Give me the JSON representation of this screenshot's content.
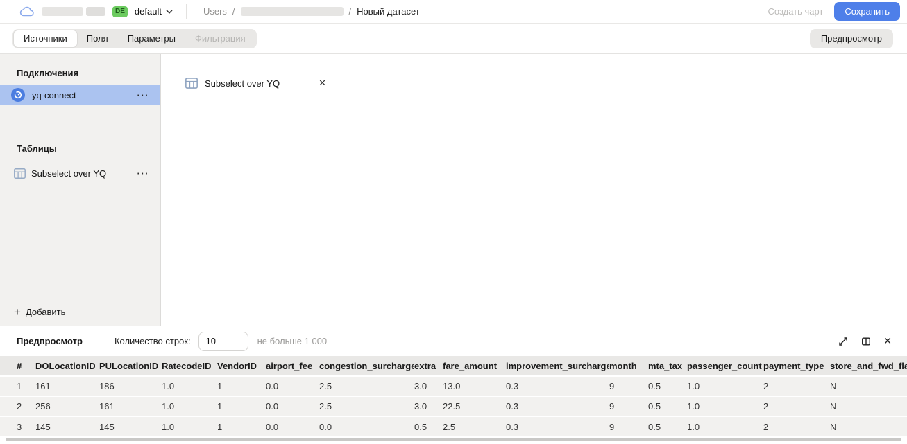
{
  "colors": {
    "accent_blue": "#4e7fe9",
    "selected_item_blue": "#abc3f0",
    "badge_green": "#6ccb5f",
    "connection_icon_blue": "#4b7de0"
  },
  "topbar": {
    "badge": "DE",
    "folder_name": "default",
    "breadcrumb": {
      "root": "Users",
      "separator": "/",
      "current": "Новый датасет"
    },
    "create_chart_label": "Создать чарт",
    "save_label": "Сохранить"
  },
  "tabs": {
    "items": [
      {
        "label": "Источники",
        "state": "active"
      },
      {
        "label": "Поля",
        "state": "default"
      },
      {
        "label": "Параметры",
        "state": "default"
      },
      {
        "label": "Фильтрация",
        "state": "disabled"
      }
    ],
    "preview_button_label": "Предпросмотр"
  },
  "sidebar": {
    "connections_title": "Подключения",
    "connections": [
      {
        "name": "yq-connect"
      }
    ],
    "tables_title": "Таблицы",
    "tables": [
      {
        "name": "Subselect over YQ"
      }
    ],
    "add_label": "Добавить"
  },
  "workspace": {
    "source_chip_label": "Subselect over YQ"
  },
  "preview": {
    "title": "Предпросмотр",
    "row_count_label": "Количество строк:",
    "row_count_value": "10",
    "row_count_hint": "не больше 1 000",
    "table": {
      "columns": [
        "#",
        "DOLocationID",
        "PULocationID",
        "RatecodeID",
        "VendorID",
        "airport_fee",
        "congestion_surcharge",
        "extra",
        "fare_amount",
        "improvement_surcharge",
        "month",
        "mta_tax",
        "passenger_count",
        "payment_type",
        "store_and_fwd_flag"
      ],
      "rows": [
        [
          "1",
          "161",
          "186",
          "1.0",
          "1",
          "0.0",
          "2.5",
          "3.0",
          "13.0",
          "0.3",
          "9",
          "0.5",
          "1.0",
          "2",
          "N"
        ],
        [
          "2",
          "256",
          "161",
          "1.0",
          "1",
          "0.0",
          "2.5",
          "3.0",
          "22.5",
          "0.3",
          "9",
          "0.5",
          "1.0",
          "2",
          "N"
        ],
        [
          "3",
          "145",
          "145",
          "1.0",
          "1",
          "0.0",
          "0.0",
          "0.5",
          "2.5",
          "0.3",
          "9",
          "0.5",
          "1.0",
          "2",
          "N"
        ]
      ]
    }
  },
  "icons": {
    "ellipsis": "···",
    "close": "✕",
    "plus": "+"
  }
}
